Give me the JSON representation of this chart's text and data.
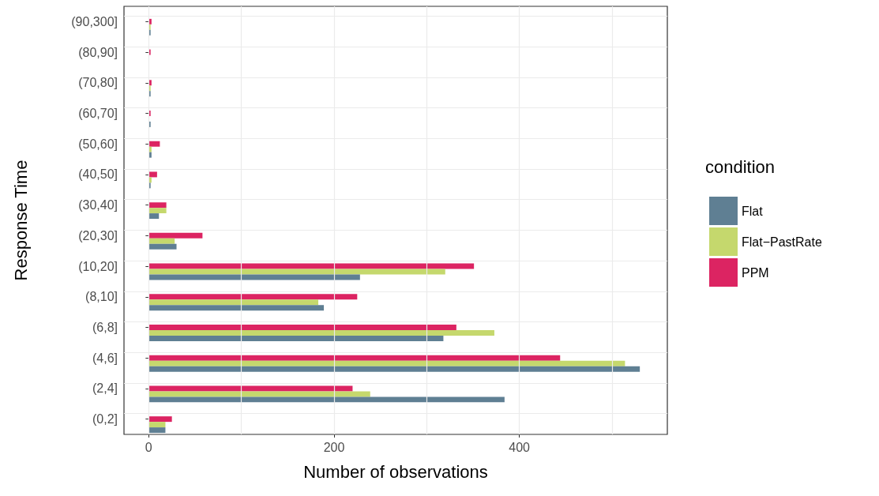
{
  "chart_data": {
    "type": "bar",
    "orientation": "horizontal",
    "xlabel": "Number of observations",
    "ylabel": "Response Time",
    "legend_title": "condition",
    "legend": "right",
    "grid": true,
    "categories": [
      "(90,300]",
      "(80,90]",
      "(70,80]",
      "(60,70]",
      "(50,60]",
      "(40,50]",
      "(30,40]",
      "(20,30]",
      "(10,20]",
      "(8,10]",
      "(6,8]",
      "(4,6]",
      "(2,4]",
      "(0,2]"
    ],
    "xlim": [
      -26.7,
      559.7
    ],
    "xticks": [
      0,
      {
        "value": 100,
        "label": null
      },
      200,
      {
        "value": 300,
        "label": null
      },
      400,
      {
        "value": 500,
        "label": null
      }
    ],
    "series": [
      {
        "name": "Flat",
        "color": "#5f7f93",
        "values": [
          2,
          0,
          2,
          2,
          3,
          2,
          11,
          30,
          228,
          189,
          318,
          530,
          384,
          18
        ]
      },
      {
        "name": "Flat−PastRate",
        "color": "#c5d86d",
        "values": [
          2,
          0,
          2,
          0,
          3,
          3,
          19,
          28,
          320,
          183,
          373,
          514,
          239,
          18
        ]
      },
      {
        "name": "PPM",
        "color": "#dc2462",
        "values": [
          3,
          2,
          3,
          2,
          12,
          9,
          19,
          58,
          351,
          225,
          332,
          444,
          220,
          25
        ]
      }
    ]
  }
}
